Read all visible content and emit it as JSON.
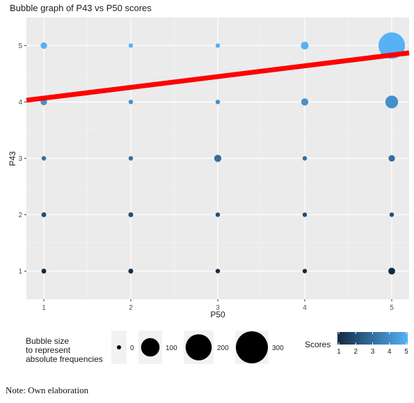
{
  "note": "Note: Own elaboration",
  "chart_data": {
    "type": "scatter",
    "subtype": "bubble",
    "title": "Bubble graph of P43 vs P50 scores",
    "xlabel": "P50",
    "ylabel": "P43",
    "x_ticks": [
      "1",
      "2",
      "3",
      "4",
      "5"
    ],
    "y_ticks": [
      "1",
      "2",
      "3",
      "4",
      "5"
    ],
    "xlim": [
      0.8,
      5.2
    ],
    "ylim": [
      0.5,
      5.5
    ],
    "grid": true,
    "background": "#ebebeb",
    "points": [
      {
        "x": 1,
        "y": 1,
        "size": 10,
        "score": 1
      },
      {
        "x": 2,
        "y": 1,
        "size": 10,
        "score": 1
      },
      {
        "x": 3,
        "y": 1,
        "size": 8,
        "score": 1
      },
      {
        "x": 4,
        "y": 1,
        "size": 8,
        "score": 1
      },
      {
        "x": 5,
        "y": 1,
        "size": 20,
        "score": 1
      },
      {
        "x": 1,
        "y": 2,
        "size": 10,
        "score": 2
      },
      {
        "x": 2,
        "y": 2,
        "size": 10,
        "score": 2
      },
      {
        "x": 3,
        "y": 2,
        "size": 8,
        "score": 2
      },
      {
        "x": 4,
        "y": 2,
        "size": 8,
        "score": 2
      },
      {
        "x": 5,
        "y": 2,
        "size": 8,
        "score": 2
      },
      {
        "x": 1,
        "y": 3,
        "size": 8,
        "score": 3
      },
      {
        "x": 2,
        "y": 3,
        "size": 8,
        "score": 3
      },
      {
        "x": 3,
        "y": 3,
        "size": 22,
        "score": 3
      },
      {
        "x": 4,
        "y": 3,
        "size": 8,
        "score": 3
      },
      {
        "x": 5,
        "y": 3,
        "size": 18,
        "score": 3
      },
      {
        "x": 1,
        "y": 4,
        "size": 18,
        "score": 4
      },
      {
        "x": 2,
        "y": 4,
        "size": 8,
        "score": 4
      },
      {
        "x": 3,
        "y": 4,
        "size": 8,
        "score": 4
      },
      {
        "x": 4,
        "y": 4,
        "size": 22,
        "score": 4
      },
      {
        "x": 5,
        "y": 4,
        "size": 70,
        "score": 4
      },
      {
        "x": 1,
        "y": 5,
        "size": 18,
        "score": 5
      },
      {
        "x": 2,
        "y": 5,
        "size": 8,
        "score": 5
      },
      {
        "x": 3,
        "y": 5,
        "size": 8,
        "score": 5
      },
      {
        "x": 4,
        "y": 5,
        "size": 25,
        "score": 5
      },
      {
        "x": 5,
        "y": 5,
        "size": 300,
        "score": 5
      }
    ],
    "trend_line": {
      "color": "#ff0000",
      "start": {
        "x": 0.8,
        "y": 4.03
      },
      "end": {
        "x": 5.2,
        "y": 4.87
      }
    },
    "size_legend": {
      "title_lines": [
        "Bubble size",
        "to represent",
        "absolute frequencies"
      ],
      "items": [
        {
          "label": "0",
          "value": 0
        },
        {
          "label": "100",
          "value": 100
        },
        {
          "label": "200",
          "value": 200
        },
        {
          "label": "300",
          "value": 300
        }
      ]
    },
    "color_legend": {
      "title": "Scores",
      "labels": [
        "1",
        "2",
        "3",
        "4",
        "5"
      ],
      "low_color": "#132b43",
      "high_color": "#56b1f7"
    }
  }
}
